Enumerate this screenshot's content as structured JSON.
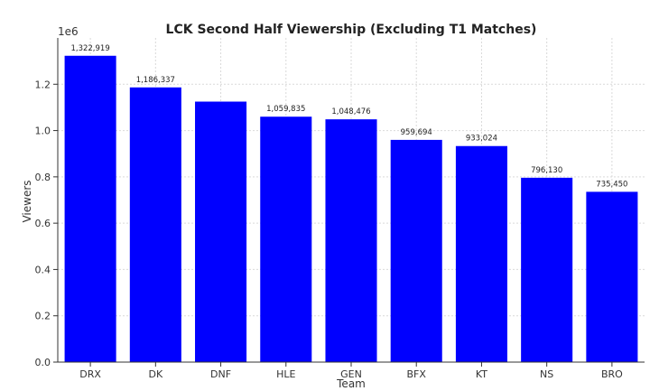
{
  "chart_data": {
    "type": "bar",
    "title": "LCK Second Half Viewership (Excluding T1 Matches)",
    "xlabel": "Team",
    "ylabel": "Viewers",
    "y_multiplier": "1e6",
    "categories": [
      "DRX",
      "DK",
      "DNF",
      "HLE",
      "GEN",
      "BFX",
      "KT",
      "NS",
      "BRO"
    ],
    "values": [
      1322919,
      1186337,
      1125000,
      1059835,
      1048476,
      959694,
      933024,
      796130,
      735450
    ],
    "data_labels": [
      "1,322,919",
      "1,186,337",
      "",
      "1,059,835",
      "1,048,476",
      "959,694",
      "933,024",
      "796,130",
      "735,450"
    ],
    "ylim": [
      0,
      1400000
    ],
    "yticks": [
      0,
      200000,
      400000,
      600000,
      800000,
      1000000,
      1200000
    ],
    "ytick_labels": [
      "0.0",
      "0.2",
      "0.4",
      "0.6",
      "0.8",
      "1.0",
      "1.2"
    ],
    "bar_color": "#0000ff",
    "grid": true,
    "grid_color": "#d9d9d9",
    "legend": false
  }
}
